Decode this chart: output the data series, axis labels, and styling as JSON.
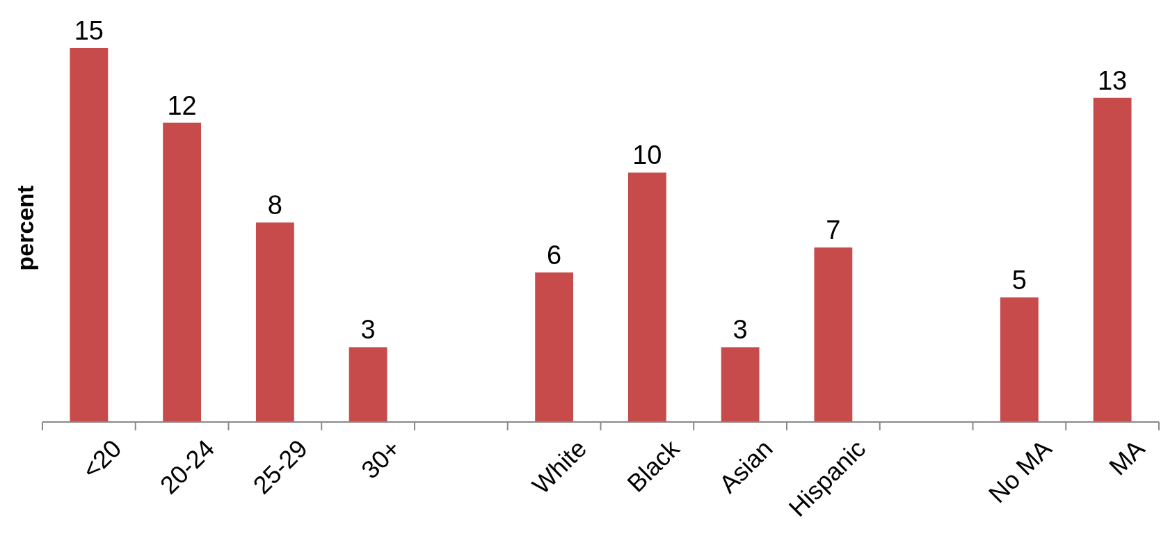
{
  "chart_data": {
    "type": "bar",
    "ylabel": "percent",
    "categories": [
      "<20",
      "20-24",
      "25-29",
      "30+",
      null,
      "White",
      "Black",
      "Asian",
      "Hispanic",
      null,
      "No MA",
      "MA"
    ],
    "values": [
      15,
      12,
      8,
      3,
      null,
      6,
      10,
      3,
      7,
      null,
      5,
      13
    ],
    "color": "#c84b4b",
    "data_labels": true
  }
}
